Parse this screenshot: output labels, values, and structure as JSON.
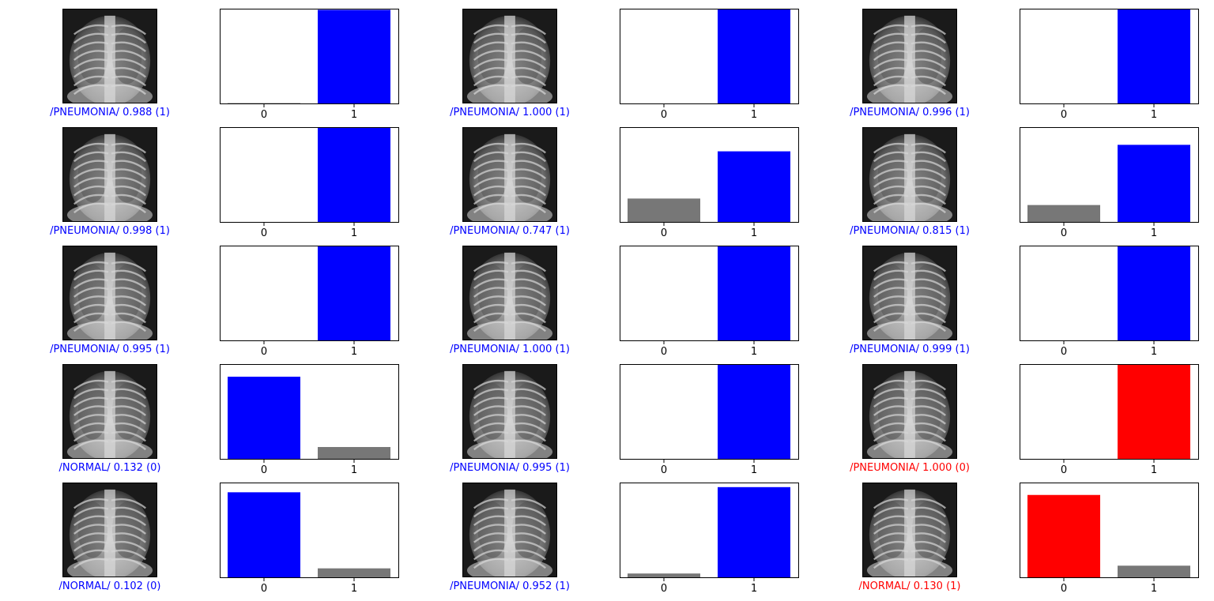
{
  "colors": {
    "correct": "#0000ff",
    "wrong": "#ff0000",
    "other_bar": "#777777",
    "axes": "#000000",
    "xray_dark": "#1a1a1a",
    "xray_light": "#d8d8d8"
  },
  "chart_data": {
    "type": "bar",
    "categories": [
      "0",
      "1"
    ],
    "ylim": [
      0,
      1
    ],
    "grid": false,
    "panels": [
      {
        "label": "/PNEUMONIA/",
        "score": "0.988",
        "true_class": "(1)",
        "predicted": 1,
        "correct": true,
        "values": [
          0.012,
          0.988
        ]
      },
      {
        "label": "/PNEUMONIA/",
        "score": "1.000",
        "true_class": "(1)",
        "predicted": 1,
        "correct": true,
        "values": [
          0.0,
          1.0
        ]
      },
      {
        "label": "/PNEUMONIA/",
        "score": "0.996",
        "true_class": "(1)",
        "predicted": 1,
        "correct": true,
        "values": [
          0.004,
          0.996
        ]
      },
      {
        "label": "/PNEUMONIA/",
        "score": "0.998",
        "true_class": "(1)",
        "predicted": 1,
        "correct": true,
        "values": [
          0.002,
          0.998
        ]
      },
      {
        "label": "/PNEUMONIA/",
        "score": "0.747",
        "true_class": "(1)",
        "predicted": 1,
        "correct": true,
        "values": [
          0.253,
          0.747
        ]
      },
      {
        "label": "/PNEUMONIA/",
        "score": "0.815",
        "true_class": "(1)",
        "predicted": 1,
        "correct": true,
        "values": [
          0.185,
          0.815
        ]
      },
      {
        "label": "/PNEUMONIA/",
        "score": "0.995",
        "true_class": "(1)",
        "predicted": 1,
        "correct": true,
        "values": [
          0.005,
          0.995
        ]
      },
      {
        "label": "/PNEUMONIA/",
        "score": "1.000",
        "true_class": "(1)",
        "predicted": 1,
        "correct": true,
        "values": [
          0.0,
          1.0
        ]
      },
      {
        "label": "/PNEUMONIA/",
        "score": "0.999",
        "true_class": "(1)",
        "predicted": 1,
        "correct": true,
        "values": [
          0.001,
          0.999
        ]
      },
      {
        "label": "/NORMAL/",
        "score": "0.132",
        "true_class": "(0)",
        "predicted": 0,
        "correct": true,
        "values": [
          0.868,
          0.132
        ]
      },
      {
        "label": "/PNEUMONIA/",
        "score": "0.995",
        "true_class": "(1)",
        "predicted": 1,
        "correct": true,
        "values": [
          0.005,
          0.995
        ]
      },
      {
        "label": "/PNEUMONIA/",
        "score": "1.000",
        "true_class": "(0)",
        "predicted": 1,
        "correct": false,
        "values": [
          0.0,
          1.0
        ]
      },
      {
        "label": "/NORMAL/",
        "score": "0.102",
        "true_class": "(0)",
        "predicted": 0,
        "correct": true,
        "values": [
          0.898,
          0.102
        ]
      },
      {
        "label": "/PNEUMONIA/",
        "score": "0.952",
        "true_class": "(1)",
        "predicted": 1,
        "correct": true,
        "values": [
          0.048,
          0.952
        ]
      },
      {
        "label": "/NORMAL/",
        "score": "0.130",
        "true_class": "(1)",
        "predicted": 0,
        "correct": false,
        "values": [
          0.87,
          0.13
        ]
      }
    ]
  }
}
